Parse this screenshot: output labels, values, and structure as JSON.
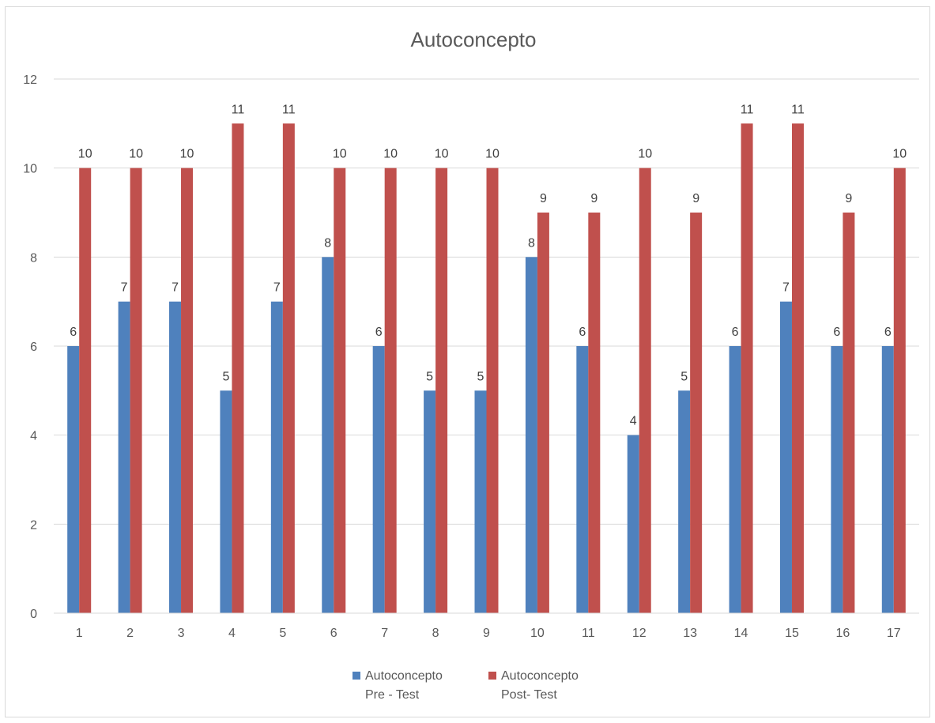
{
  "chart_data": {
    "type": "bar",
    "title": "Autoconcepto",
    "xlabel": "",
    "ylabel": "",
    "ylim": [
      0,
      12
    ],
    "yticks": [
      "0",
      "2",
      "4",
      "6",
      "8",
      "10",
      "12"
    ],
    "grid": true,
    "legend_position": "bottom",
    "categories": [
      "1",
      "2",
      "3",
      "4",
      "5",
      "6",
      "7",
      "8",
      "9",
      "10",
      "11",
      "12",
      "13",
      "14",
      "15",
      "16",
      "17"
    ],
    "series": [
      {
        "name": "Autoconcepto Pre - Test",
        "legend_lines": [
          "Autoconcepto",
          "Pre - Test"
        ],
        "color": "#4f81bd",
        "values": [
          6,
          7,
          7,
          5,
          7,
          8,
          6,
          5,
          5,
          8,
          6,
          4,
          5,
          6,
          7,
          6,
          6
        ]
      },
      {
        "name": "Autoconcepto Post- Test",
        "legend_lines": [
          "Autoconcepto",
          "Post- Test"
        ],
        "color": "#c0504d",
        "values": [
          10,
          10,
          10,
          11,
          11,
          10,
          10,
          10,
          10,
          9,
          9,
          10,
          9,
          11,
          11,
          9,
          10
        ]
      }
    ]
  }
}
